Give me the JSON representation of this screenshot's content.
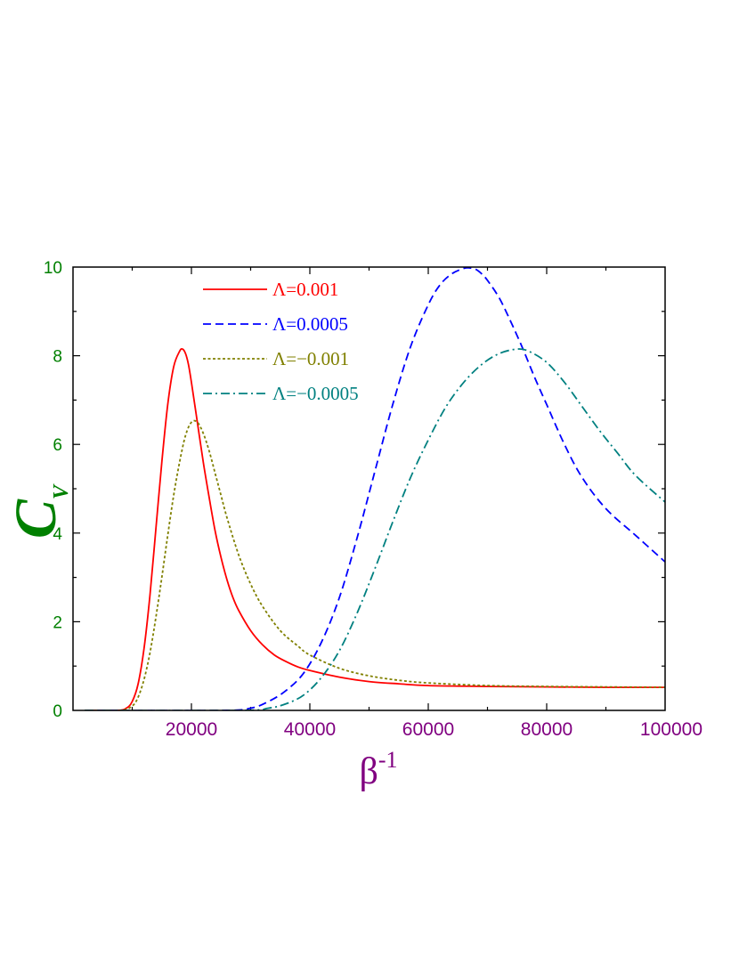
{
  "chart_data": {
    "type": "line",
    "title": "",
    "xlabel": {
      "base": "β",
      "sup": "-1"
    },
    "ylabel": {
      "base": "C",
      "sub": "V"
    },
    "xlim": [
      0,
      100000
    ],
    "ylim": [
      0,
      10
    ],
    "x_ticks": [
      20000,
      40000,
      60000,
      80000,
      100000
    ],
    "x_tick_labels": [
      "20000",
      "40000",
      "60000",
      "80000",
      "100000"
    ],
    "y_ticks": [
      0,
      2,
      4,
      6,
      8,
      10
    ],
    "y_tick_labels": [
      "0",
      "2",
      "4",
      "6",
      "8",
      "10"
    ],
    "grid": false,
    "legend_position": "top-left",
    "colors": {
      "x_axis": "#800080",
      "y_axis": "#008000",
      "frame": "#000000"
    },
    "series": [
      {
        "name": "Λ=0.001",
        "color": "#ff0000",
        "dash": "solid",
        "x": [
          2000,
          7500,
          9000,
          10000,
          11000,
          12000,
          13000,
          14000,
          15000,
          16000,
          17000,
          18000,
          18500,
          19000,
          19500,
          20000,
          21000,
          22000,
          23000,
          24000,
          25000,
          26000,
          27000,
          28000,
          30000,
          32000,
          34000,
          36000,
          38000,
          40000,
          45000,
          50000,
          55000,
          60000,
          70000,
          80000,
          90000,
          100000
        ],
        "y": [
          0,
          0,
          0.05,
          0.2,
          0.6,
          1.4,
          2.6,
          4.1,
          5.6,
          6.9,
          7.75,
          8.1,
          8.15,
          8.05,
          7.8,
          7.4,
          6.5,
          5.6,
          4.8,
          4.05,
          3.45,
          2.95,
          2.55,
          2.25,
          1.8,
          1.48,
          1.25,
          1.1,
          0.98,
          0.9,
          0.75,
          0.65,
          0.6,
          0.56,
          0.54,
          0.53,
          0.52,
          0.52
        ]
      },
      {
        "name": "Λ=0.0005",
        "color": "#0000ff",
        "dash": "dashed",
        "x": [
          2000,
          25000,
          30000,
          33000,
          36000,
          39000,
          42000,
          45000,
          48000,
          51000,
          54000,
          57000,
          60000,
          62000,
          64000,
          66000,
          67000,
          68000,
          69000,
          70000,
          72000,
          74000,
          76000,
          78000,
          80000,
          83000,
          86000,
          90000,
          95000,
          100000
        ],
        "y": [
          0,
          0,
          0.05,
          0.2,
          0.45,
          0.85,
          1.55,
          2.55,
          3.9,
          5.4,
          6.9,
          8.2,
          9.15,
          9.6,
          9.85,
          9.97,
          9.98,
          9.95,
          9.85,
          9.7,
          9.3,
          8.75,
          8.15,
          7.5,
          6.9,
          6.0,
          5.25,
          4.55,
          3.95,
          3.35
        ]
      },
      {
        "name": "Λ=−0.001",
        "color": "#808000",
        "dash": "dotted",
        "x": [
          2000,
          8000,
          10000,
          11000,
          12000,
          13000,
          14000,
          15000,
          16000,
          17000,
          18000,
          19000,
          20000,
          21000,
          22000,
          23000,
          24000,
          25000,
          26000,
          28000,
          30000,
          32000,
          35000,
          38000,
          40000,
          45000,
          50000,
          55000,
          60000,
          70000,
          80000,
          90000,
          100000
        ],
        "y": [
          0,
          0,
          0.1,
          0.3,
          0.7,
          1.3,
          2.1,
          3.0,
          3.95,
          4.85,
          5.6,
          6.2,
          6.5,
          6.5,
          6.25,
          5.85,
          5.35,
          4.85,
          4.35,
          3.5,
          2.85,
          2.35,
          1.8,
          1.45,
          1.25,
          0.95,
          0.78,
          0.68,
          0.62,
          0.56,
          0.54,
          0.53,
          0.52
        ]
      },
      {
        "name": "Λ=−0.0005",
        "color": "#008080",
        "dash": "dashdot",
        "x": [
          2000,
          28000,
          33000,
          36000,
          39000,
          42000,
          45000,
          48000,
          51000,
          54000,
          57000,
          60000,
          63000,
          66000,
          69000,
          72000,
          75000,
          77000,
          80000,
          83000,
          86000,
          89000,
          92000,
          95000,
          100000
        ],
        "y": [
          0,
          0,
          0.05,
          0.15,
          0.35,
          0.75,
          1.35,
          2.2,
          3.2,
          4.25,
          5.25,
          6.1,
          6.85,
          7.4,
          7.8,
          8.05,
          8.15,
          8.1,
          7.85,
          7.4,
          6.85,
          6.3,
          5.8,
          5.3,
          4.7
        ]
      }
    ]
  }
}
